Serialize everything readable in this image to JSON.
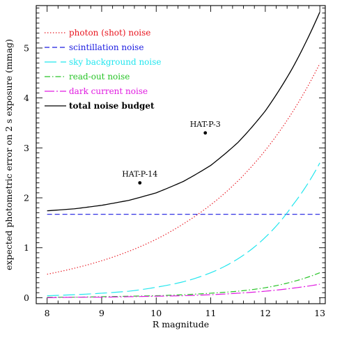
{
  "chart_data": {
    "type": "line",
    "title": "",
    "xlabel": "R magnitude",
    "ylabel": "expected photometric error on 2 s exposure (mmag)",
    "xlim": [
      7.8,
      13.1
    ],
    "ylim": [
      -0.12,
      5.85
    ],
    "x_ticks": [
      8,
      9,
      10,
      11,
      12,
      13
    ],
    "y_ticks": [
      0,
      1,
      2,
      3,
      4,
      5
    ],
    "grid": false,
    "legend_position": "top-left",
    "series": [
      {
        "name": "photon (shot) noise",
        "color": "#e8141e",
        "dash": "dotted",
        "x": [
          8.0,
          8.5,
          9.0,
          9.5,
          10.0,
          10.5,
          11.0,
          11.5,
          12.0,
          12.5,
          13.0
        ],
        "y": [
          0.47,
          0.59,
          0.74,
          0.93,
          1.17,
          1.48,
          1.86,
          2.34,
          2.95,
          3.72,
          4.69
        ]
      },
      {
        "name": "scintillation noise",
        "color": "#1a1ae0",
        "dash": "dashed",
        "x": [
          8.0,
          13.0
        ],
        "y": [
          1.67,
          1.67
        ]
      },
      {
        "name": "sky background noise",
        "color": "#22e6ee",
        "dash": "longdash",
        "x": [
          8.0,
          8.5,
          9.0,
          9.5,
          10.0,
          10.5,
          11.0,
          11.5,
          12.0,
          12.5,
          13.0
        ],
        "y": [
          0.04,
          0.06,
          0.09,
          0.13,
          0.21,
          0.32,
          0.5,
          0.78,
          1.21,
          1.85,
          2.7
        ]
      },
      {
        "name": "read-out noise",
        "color": "#28c428",
        "dash": "dashdot",
        "x": [
          8.0,
          8.5,
          9.0,
          9.5,
          10.0,
          10.5,
          11.0,
          11.5,
          12.0,
          12.5,
          13.0
        ],
        "y": [
          0.01,
          0.01,
          0.02,
          0.03,
          0.04,
          0.06,
          0.09,
          0.13,
          0.2,
          0.32,
          0.5
        ]
      },
      {
        "name": "dark current noise",
        "color": "#e01ae0",
        "dash": "longdashdot",
        "x": [
          8.0,
          8.5,
          9.0,
          9.5,
          10.0,
          10.5,
          11.0,
          11.5,
          12.0,
          12.5,
          13.0
        ],
        "y": [
          0.0,
          0.01,
          0.01,
          0.02,
          0.03,
          0.04,
          0.06,
          0.09,
          0.13,
          0.19,
          0.27
        ]
      },
      {
        "name": "total noise budget",
        "color": "#000000",
        "dash": "solid",
        "x": [
          8.0,
          8.5,
          9.0,
          9.5,
          10.0,
          10.5,
          11.0,
          11.5,
          12.0,
          12.5,
          13.0
        ],
        "y": [
          1.74,
          1.78,
          1.85,
          1.95,
          2.1,
          2.33,
          2.65,
          3.11,
          3.74,
          4.6,
          5.72
        ]
      }
    ],
    "points": [
      {
        "label": "HAT-P-14",
        "x": 9.7,
        "y": 2.3
      },
      {
        "label": "HAT-P-3",
        "x": 10.9,
        "y": 3.3
      }
    ]
  }
}
